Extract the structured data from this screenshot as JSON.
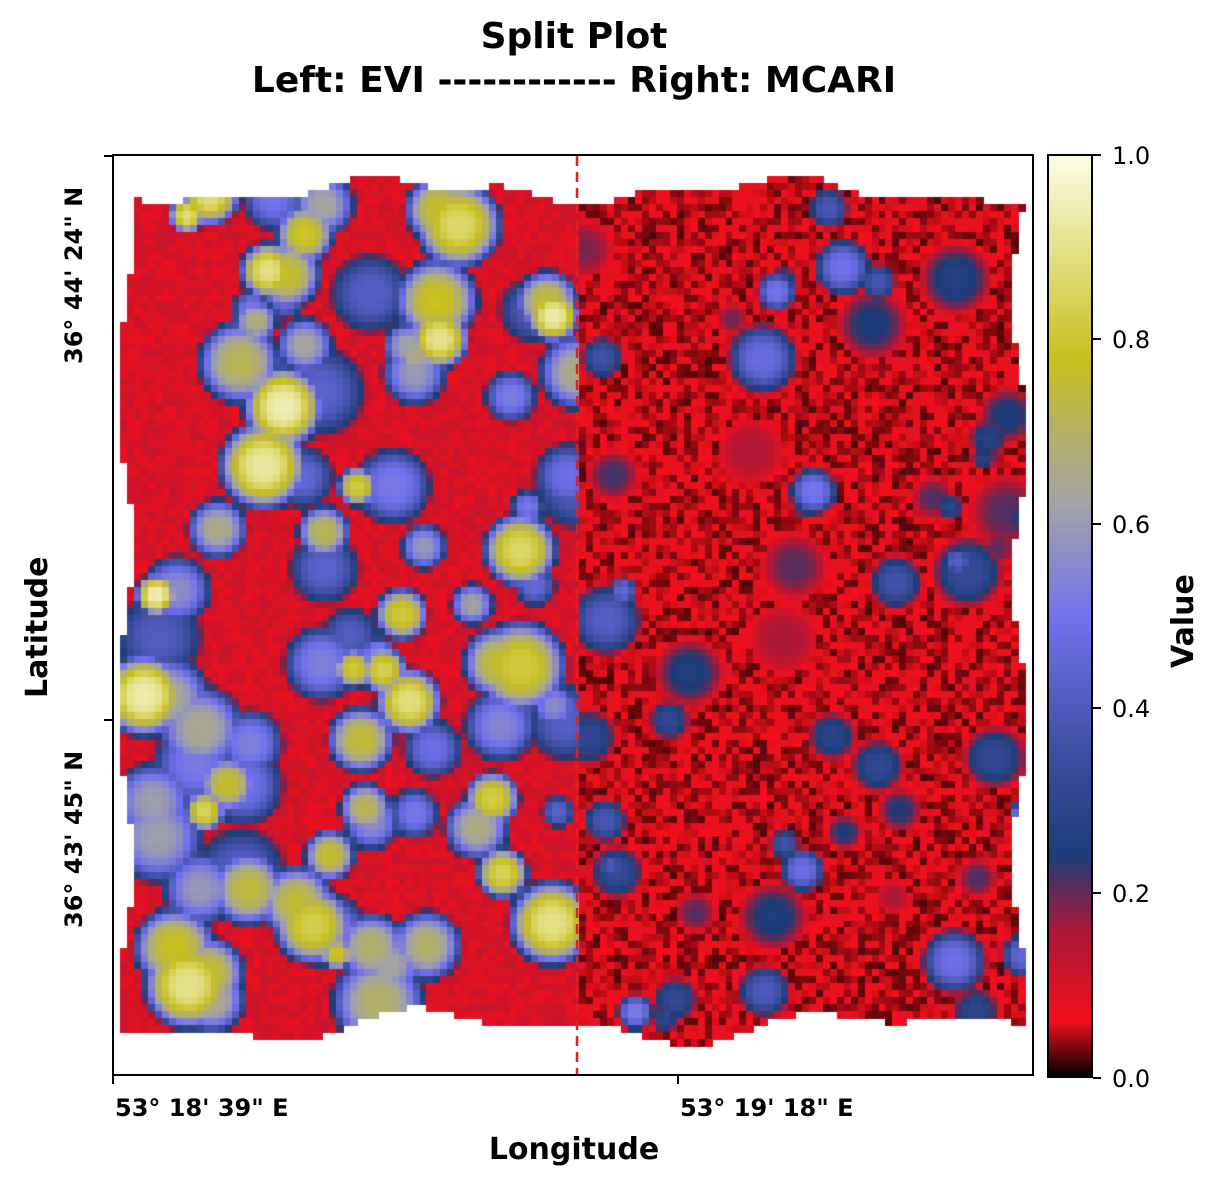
{
  "chart_data": {
    "type": "heatmap",
    "title": "Split Plot",
    "subtitle": "Left: EVI ------------ Right: MCARI",
    "xlabel": "Longitude",
    "ylabel": "Latitude",
    "x_ticks": [
      "53° 18' 39\" E",
      "53° 19' 18\" E"
    ],
    "y_ticks": [
      "36° 44' 24\" N",
      "36° 43' 45\" N"
    ],
    "split": {
      "left": "EVI",
      "right": "MCARI",
      "line_color": "#e02020",
      "line_style": "dashed"
    },
    "colorbar": {
      "label": "Value",
      "range": [
        0.0,
        1.0
      ],
      "ticks": [
        "0.0",
        "0.2",
        "0.4",
        "0.6",
        "0.8",
        "1.0"
      ],
      "colors": {
        "0.0": "#000000",
        "0.06": "#f2101c",
        "0.16": "#a81838",
        "0.24": "#1c3c78",
        "0.34": "#3a4c9c",
        "0.5": "#7272ee",
        "0.62": "#a2a2a8",
        "0.78": "#c8c01e",
        "1.0": "#fdfde6"
      }
    },
    "grid": false
  }
}
